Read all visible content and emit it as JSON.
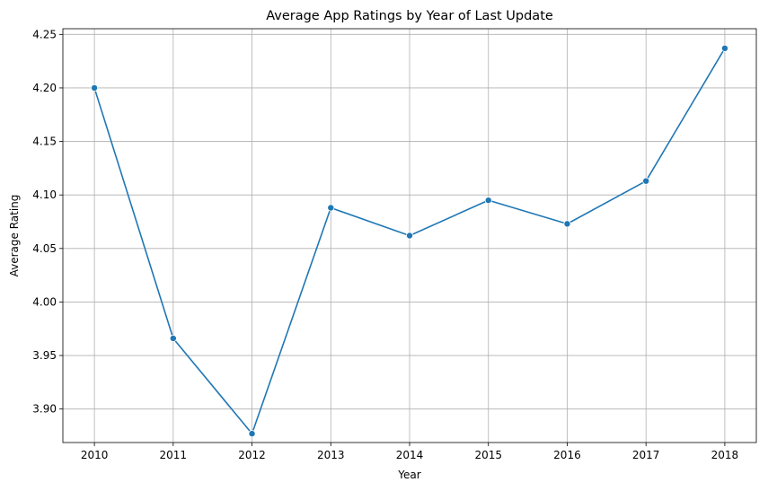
{
  "chart_data": {
    "type": "line",
    "title": "Average App Ratings by Year of Last Update",
    "xlabel": "Year",
    "ylabel": "Average Rating",
    "x": [
      2010,
      2011,
      2012,
      2013,
      2014,
      2015,
      2016,
      2017,
      2018
    ],
    "series": [
      {
        "values": [
          4.2,
          3.966,
          3.877,
          4.088,
          4.062,
          4.095,
          4.073,
          4.113,
          4.237
        ],
        "color": "#1f77b4"
      }
    ],
    "xlim": [
      2009.6,
      2018.4
    ],
    "ylim": [
      3.8687,
      4.2553
    ],
    "yticks": [
      "3.90",
      "3.95",
      "4.00",
      "4.05",
      "4.10",
      "4.15",
      "4.20",
      "4.25"
    ],
    "xticks": [
      "2010",
      "2011",
      "2012",
      "2013",
      "2014",
      "2015",
      "2016",
      "2017",
      "2018"
    ],
    "grid": true,
    "marker": "circle"
  }
}
